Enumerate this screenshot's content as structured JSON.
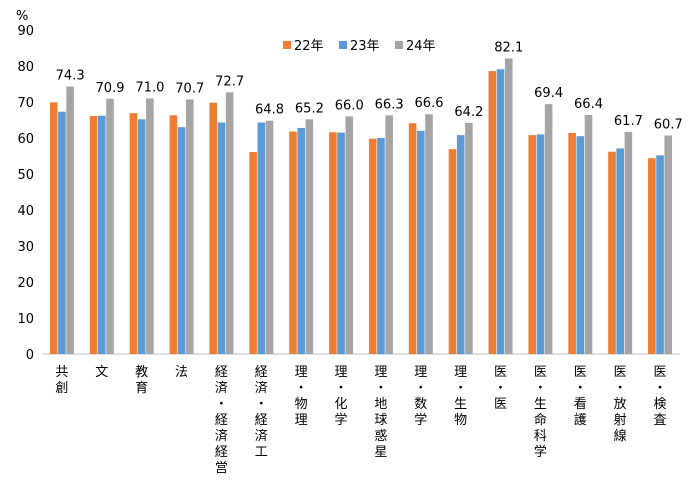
{
  "chart_data": {
    "type": "bar",
    "unit_label": "%",
    "ylim": [
      0,
      90
    ],
    "yticks": [
      0,
      10,
      20,
      30,
      40,
      50,
      60,
      70,
      80,
      90
    ],
    "grid": false,
    "legend_placement": "top-center",
    "categories": [
      "共創",
      "文",
      "教育",
      "法",
      "経済・経済経営",
      "経済・経済工",
      "理・物理",
      "理・化学",
      "理・地球惑星",
      "理・数学",
      "理・生物",
      "医・医",
      "医・生命科学",
      "医・看護",
      "医・放射線",
      "医・検査"
    ],
    "series": [
      {
        "name": "22年",
        "color": "#ED7D31",
        "values": [
          69.9,
          66.1,
          66.9,
          66.3,
          69.8,
          56.1,
          61.8,
          61.6,
          59.8,
          64.1,
          56.9,
          78.6,
          60.8,
          61.4,
          56.2,
          54.4
        ]
      },
      {
        "name": "23年",
        "color": "#5B9BD5",
        "values": [
          67.3,
          66.2,
          65.2,
          63.0,
          64.3,
          64.3,
          62.8,
          61.5,
          60.0,
          62.0,
          60.8,
          79.1,
          61.0,
          60.5,
          57.1,
          55.2
        ]
      },
      {
        "name": "24年",
        "color": "#A5A5A5",
        "values": [
          74.3,
          70.9,
          71.0,
          70.7,
          72.7,
          64.8,
          65.2,
          66.0,
          66.3,
          66.6,
          64.2,
          82.1,
          69.4,
          66.4,
          61.7,
          60.7
        ]
      }
    ],
    "data_labels": [
      "74.3",
      "70.9",
      "71.0",
      "70.7",
      "72.7",
      "64.8",
      "65.2",
      "66.0",
      "66.3",
      "66.6",
      "64.2",
      "82.1",
      "69.4",
      "66.4",
      "61.7",
      "60.7"
    ]
  }
}
